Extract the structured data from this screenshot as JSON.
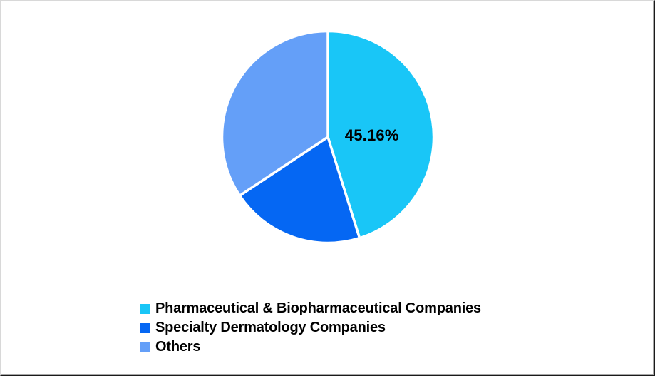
{
  "page": {
    "background": "#ffffff",
    "frame_border_light": "#d8d8d8",
    "frame_border_dark": "#1a1a1a",
    "frame_border_inner": "#a6a6a6"
  },
  "chart_data": {
    "type": "pie",
    "title": "",
    "categories": [
      "Pharmaceutical & Biopharmaceutical Companies",
      "Specialty Dermatology Companies",
      "Others"
    ],
    "values": [
      45.16,
      20.5,
      34.34
    ],
    "data_labels": [
      "45.16%",
      "",
      ""
    ],
    "colors": [
      "#19C6F7",
      "#0567F3",
      "#649FF8"
    ],
    "slice_border_color": "#ffffff",
    "data_label_color": "#000000",
    "legend_text_color": "#000000",
    "start_angle_deg": 0,
    "direction": "clockwise",
    "legend_position": "bottom-left",
    "grid": "off"
  }
}
